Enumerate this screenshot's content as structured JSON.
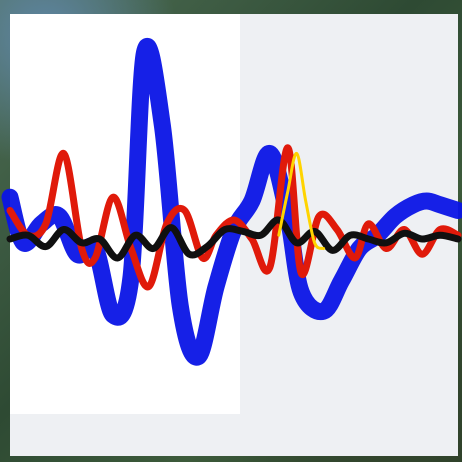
{
  "chart_data": {
    "type": "line",
    "title": "",
    "xlabel": "",
    "ylabel": "",
    "grid": false,
    "legend": "none",
    "xlim": [
      0,
      1
    ],
    "ylim": [
      -1,
      1
    ],
    "series": [
      {
        "color": "#0a14e6",
        "style": "thick-band",
        "x": [
          0.0,
          0.03,
          0.07,
          0.11,
          0.15,
          0.19,
          0.23,
          0.27,
          0.3,
          0.34,
          0.38,
          0.42,
          0.46,
          0.5,
          0.54,
          0.58,
          0.62,
          0.65,
          0.7,
          0.74,
          0.78,
          0.82,
          0.86,
          0.9,
          0.93,
          0.96,
          1.0
        ],
        "y": [
          0.22,
          -0.02,
          0.08,
          0.12,
          -0.08,
          -0.05,
          -0.4,
          -0.2,
          0.98,
          0.6,
          -0.35,
          -0.62,
          -0.25,
          0.05,
          0.2,
          0.45,
          0.12,
          -0.28,
          -0.38,
          -0.22,
          -0.05,
          0.02,
          0.12,
          0.18,
          0.2,
          0.18,
          0.15
        ]
      },
      {
        "color": "#e01a0a",
        "style": "line",
        "x": [
          0.0,
          0.04,
          0.08,
          0.12,
          0.16,
          0.19,
          0.23,
          0.27,
          0.31,
          0.35,
          0.39,
          0.43,
          0.46,
          0.5,
          0.54,
          0.58,
          0.62,
          0.65,
          0.69,
          0.73,
          0.77,
          0.8,
          0.84,
          0.88,
          0.92,
          0.96,
          1.0
        ],
        "y": [
          0.15,
          0.02,
          0.08,
          0.45,
          -0.05,
          -0.1,
          0.22,
          -0.05,
          -0.25,
          0.08,
          0.15,
          -0.1,
          0.02,
          0.1,
          0.0,
          -0.15,
          0.48,
          -0.18,
          0.12,
          0.05,
          -0.1,
          0.08,
          -0.05,
          0.05,
          -0.08,
          0.05,
          0.02
        ]
      },
      {
        "color": "#101010",
        "style": "line",
        "x": [
          0.0,
          0.04,
          0.08,
          0.12,
          0.16,
          0.2,
          0.24,
          0.28,
          0.32,
          0.36,
          0.4,
          0.44,
          0.48,
          0.52,
          0.56,
          0.6,
          0.64,
          0.68,
          0.72,
          0.76,
          0.8,
          0.84,
          0.88,
          0.92,
          0.96,
          1.0
        ],
        "y": [
          0.0,
          0.02,
          -0.04,
          0.05,
          -0.02,
          0.0,
          -0.1,
          0.02,
          -0.05,
          0.06,
          -0.08,
          -0.04,
          0.05,
          0.04,
          0.02,
          0.1,
          -0.02,
          0.04,
          -0.06,
          0.02,
          0.0,
          -0.02,
          0.03,
          0.0,
          0.02,
          0.0
        ]
      },
      {
        "color": "#ffd400",
        "style": "highlight",
        "x": [
          0.6,
          0.62,
          0.64,
          0.66,
          0.68,
          0.7
        ],
        "y": [
          0.02,
          0.25,
          0.45,
          0.2,
          -0.02,
          -0.05
        ]
      }
    ]
  }
}
